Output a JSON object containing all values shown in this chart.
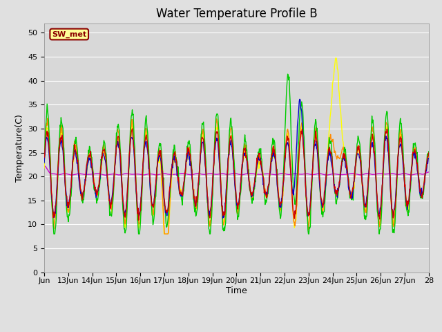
{
  "title": "Water Temperature Profile B",
  "xlabel": "Time",
  "ylabel": "Temperature(C)",
  "ylim": [
    0,
    52
  ],
  "yticks": [
    0,
    5,
    10,
    15,
    20,
    25,
    30,
    35,
    40,
    45,
    50
  ],
  "plot_bg_color": "#d8d8d8",
  "fig_bg_color": "#e0e0e0",
  "annotation_text": "SW_met",
  "annotation_bg": "#ffff99",
  "annotation_border": "#8B0000",
  "series_colors": {
    "0cm": "#cc0000",
    "+5cm": "#0000cc",
    "+10cm": "#00cc00",
    "+30cm": "#ff8800",
    "+50cm": "#ffff00",
    "TC_temp11": "#cc00cc"
  },
  "xtick_labels": [
    "Jun",
    "13Jun",
    "14Jun",
    "15Jun",
    "16Jun",
    "17Jun",
    "18Jun",
    "19Jun",
    "20Jun",
    "21Jun",
    "22Jun",
    "23Jun",
    "24Jun",
    "25Jun",
    "26Jun",
    "27Jun",
    "28"
  ],
  "title_fontsize": 12,
  "axis_fontsize": 9,
  "tick_fontsize": 8
}
